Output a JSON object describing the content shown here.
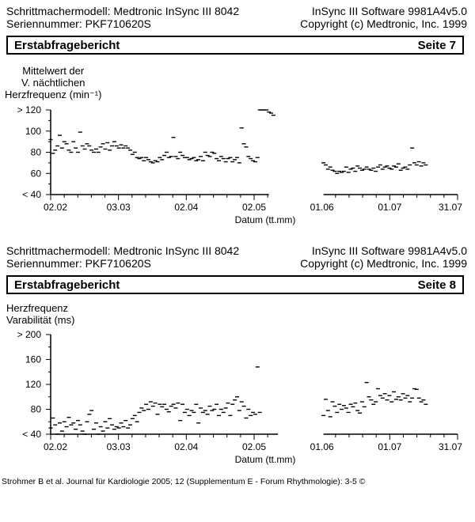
{
  "header1": {
    "model": "Schrittmachermodell: Medtronic InSync III 8042",
    "serial": "Seriennummer: PKF710620S",
    "software": "InSync III Software 9981A4v5.0",
    "copyright": "Copyright (c) Medtronic, Inc. 1999"
  },
  "bar1": {
    "title": "Erstabfragebericht",
    "page": "Seite 7"
  },
  "header2": {
    "model": "Schrittmachermodell: Medtronic InSync III 8042",
    "serial": "Seriennummer: PKF710620S",
    "software": "InSync III Software 9981A4v5.0",
    "copyright": "Copyright (c) Medtronic, Inc. 1999"
  },
  "bar2": {
    "title": "Erstabfragebericht",
    "page": "Seite 8"
  },
  "footer": "Strohmer B et al. Journal für Kardiologie 2005; 12 (Supplementum E - Forum Rhythmologie): 3-5 ©",
  "chart_data": [
    {
      "type": "scatter",
      "title": "",
      "ylabel_lines": [
        "Mittelwert der",
        "V. nächtlichen",
        "Herzfrequenz (min⁻¹)"
      ],
      "xlabel": "Datum (tt.mm)",
      "x_ticks": [
        "02.02",
        "03.03",
        "02.04",
        "02.05",
        "01.06",
        "01.07",
        "31.07"
      ],
      "y_ticks": [
        {
          "value": 40,
          "label": "< 40"
        },
        {
          "value": 60,
          "label": "60"
        },
        {
          "value": 80,
          "label": "80"
        },
        {
          "value": 100,
          "label": "100"
        },
        {
          "value": 120,
          "label": "> 120"
        }
      ],
      "ylim": [
        40,
        120
      ],
      "x_unit": "day index (0 = 02.02, 179 = 31.07)",
      "gap": [
        96,
        120
      ],
      "points": [
        [
          0,
          92
        ],
        [
          1,
          79
        ],
        [
          2,
          82
        ],
        [
          3,
          86
        ],
        [
          4,
          96
        ],
        [
          5,
          84
        ],
        [
          6,
          90
        ],
        [
          7,
          88
        ],
        [
          8,
          82
        ],
        [
          9,
          80
        ],
        [
          10,
          90
        ],
        [
          11,
          84
        ],
        [
          12,
          80
        ],
        [
          13,
          99
        ],
        [
          14,
          86
        ],
        [
          15,
          83
        ],
        [
          16,
          88
        ],
        [
          17,
          86
        ],
        [
          18,
          82
        ],
        [
          19,
          80
        ],
        [
          20,
          83
        ],
        [
          21,
          80
        ],
        [
          22,
          85
        ],
        [
          23,
          88
        ],
        [
          24,
          83
        ],
        [
          25,
          89
        ],
        [
          26,
          82
        ],
        [
          27,
          86
        ],
        [
          28,
          90
        ],
        [
          29,
          86
        ],
        [
          30,
          84
        ],
        [
          31,
          87
        ],
        [
          32,
          84
        ],
        [
          33,
          86
        ],
        [
          34,
          84
        ],
        [
          35,
          82
        ],
        [
          36,
          78
        ],
        [
          37,
          80
        ],
        [
          38,
          75
        ],
        [
          39,
          74
        ],
        [
          40,
          75
        ],
        [
          41,
          72
        ],
        [
          42,
          75
        ],
        [
          43,
          73
        ],
        [
          44,
          71
        ],
        [
          45,
          70
        ],
        [
          46,
          72
        ],
        [
          47,
          71
        ],
        [
          48,
          75
        ],
        [
          49,
          73
        ],
        [
          50,
          77
        ],
        [
          51,
          80
        ],
        [
          52,
          75
        ],
        [
          53,
          76
        ],
        [
          54,
          94
        ],
        [
          55,
          76
        ],
        [
          56,
          74
        ],
        [
          57,
          80
        ],
        [
          58,
          77
        ],
        [
          59,
          75
        ],
        [
          60,
          75
        ],
        [
          61,
          73
        ],
        [
          62,
          74
        ],
        [
          63,
          75
        ],
        [
          64,
          72
        ],
        [
          65,
          73
        ],
        [
          66,
          76
        ],
        [
          67,
          72
        ],
        [
          68,
          80
        ],
        [
          69,
          77
        ],
        [
          70,
          76
        ],
        [
          71,
          80
        ],
        [
          72,
          79
        ],
        [
          73,
          74
        ],
        [
          74,
          72
        ],
        [
          75,
          76
        ],
        [
          76,
          74
        ],
        [
          77,
          71
        ],
        [
          78,
          74
        ],
        [
          79,
          75
        ],
        [
          80,
          71
        ],
        [
          81,
          73
        ],
        [
          82,
          75
        ],
        [
          83,
          70
        ],
        [
          84,
          103
        ],
        [
          85,
          88
        ],
        [
          86,
          85
        ],
        [
          87,
          76
        ],
        [
          88,
          74
        ],
        [
          89,
          72
        ],
        [
          90,
          71
        ],
        [
          91,
          75
        ],
        [
          92,
          121
        ],
        [
          93,
          121
        ],
        [
          94,
          121
        ],
        [
          95,
          120
        ],
        [
          96,
          118
        ],
        [
          97,
          117
        ],
        [
          98,
          115
        ],
        [
          120,
          70
        ],
        [
          121,
          68
        ],
        [
          122,
          64
        ],
        [
          123,
          66
        ],
        [
          124,
          63
        ],
        [
          125,
          62
        ],
        [
          126,
          60
        ],
        [
          127,
          62
        ],
        [
          128,
          61
        ],
        [
          129,
          62
        ],
        [
          130,
          66
        ],
        [
          131,
          61
        ],
        [
          132,
          64
        ],
        [
          133,
          65
        ],
        [
          134,
          62
        ],
        [
          135,
          67
        ],
        [
          136,
          65
        ],
        [
          137,
          63
        ],
        [
          138,
          64
        ],
        [
          139,
          66
        ],
        [
          140,
          64
        ],
        [
          141,
          63
        ],
        [
          142,
          65
        ],
        [
          143,
          62
        ],
        [
          144,
          66
        ],
        [
          145,
          68
        ],
        [
          146,
          64
        ],
        [
          147,
          66
        ],
        [
          148,
          67
        ],
        [
          149,
          65
        ],
        [
          150,
          64
        ],
        [
          151,
          67
        ],
        [
          152,
          66
        ],
        [
          153,
          69
        ],
        [
          154,
          63
        ],
        [
          155,
          65
        ],
        [
          156,
          66
        ],
        [
          157,
          64
        ],
        [
          158,
          68
        ],
        [
          159,
          84
        ],
        [
          160,
          70
        ],
        [
          161,
          68
        ],
        [
          162,
          71
        ],
        [
          163,
          67
        ],
        [
          164,
          70
        ],
        [
          165,
          68
        ]
      ]
    },
    {
      "type": "scatter",
      "title": "",
      "ylabel_lines": [
        "Herzfrequenz",
        "Varabilität (ms)"
      ],
      "xlabel": "Datum (tt.mm)",
      "x_ticks": [
        "02.02",
        "03.03",
        "02.04",
        "02.05",
        "01.06",
        "01.07",
        "31.07"
      ],
      "y_ticks": [
        {
          "value": 40,
          "label": "< 40"
        },
        {
          "value": 80,
          "label": "80"
        },
        {
          "value": 120,
          "label": "120"
        },
        {
          "value": 160,
          "label": "160"
        },
        {
          "value": 200,
          "label": "> 200"
        }
      ],
      "ylim": [
        40,
        200
      ],
      "x_unit": "day index (0 = 02.02, 179 = 31.07)",
      "gap": [
        100,
        120
      ],
      "points": [
        [
          0,
          50
        ],
        [
          1,
          66
        ],
        [
          2,
          55
        ],
        [
          3,
          40
        ],
        [
          4,
          58
        ],
        [
          5,
          45
        ],
        [
          6,
          60
        ],
        [
          7,
          52
        ],
        [
          8,
          67
        ],
        [
          9,
          55
        ],
        [
          10,
          58
        ],
        [
          11,
          48
        ],
        [
          12,
          62
        ],
        [
          13,
          55
        ],
        [
          14,
          45
        ],
        [
          15,
          40
        ],
        [
          16,
          60
        ],
        [
          17,
          72
        ],
        [
          18,
          78
        ],
        [
          19,
          48
        ],
        [
          20,
          58
        ],
        [
          21,
          40
        ],
        [
          22,
          52
        ],
        [
          23,
          45
        ],
        [
          24,
          60
        ],
        [
          25,
          50
        ],
        [
          26,
          65
        ],
        [
          27,
          55
        ],
        [
          28,
          48
        ],
        [
          29,
          52
        ],
        [
          30,
          50
        ],
        [
          31,
          58
        ],
        [
          32,
          52
        ],
        [
          33,
          62
        ],
        [
          34,
          50
        ],
        [
          35,
          55
        ],
        [
          36,
          65
        ],
        [
          37,
          70
        ],
        [
          38,
          60
        ],
        [
          39,
          75
        ],
        [
          40,
          82
        ],
        [
          41,
          78
        ],
        [
          42,
          88
        ],
        [
          43,
          80
        ],
        [
          44,
          92
        ],
        [
          45,
          85
        ],
        [
          46,
          90
        ],
        [
          47,
          72
        ],
        [
          48,
          88
        ],
        [
          49,
          84
        ],
        [
          50,
          88
        ],
        [
          51,
          80
        ],
        [
          52,
          76
        ],
        [
          53,
          85
        ],
        [
          54,
          88
        ],
        [
          55,
          82
        ],
        [
          56,
          90
        ],
        [
          57,
          62
        ],
        [
          58,
          88
        ],
        [
          59,
          75
        ],
        [
          60,
          80
        ],
        [
          61,
          70
        ],
        [
          62,
          78
        ],
        [
          63,
          75
        ],
        [
          64,
          88
        ],
        [
          65,
          58
        ],
        [
          66,
          82
        ],
        [
          67,
          75
        ],
        [
          68,
          78
        ],
        [
          69,
          72
        ],
        [
          70,
          85
        ],
        [
          71,
          78
        ],
        [
          72,
          80
        ],
        [
          73,
          88
        ],
        [
          74,
          70
        ],
        [
          75,
          80
        ],
        [
          76,
          75
        ],
        [
          77,
          82
        ],
        [
          78,
          90
        ],
        [
          79,
          70
        ],
        [
          80,
          88
        ],
        [
          81,
          95
        ],
        [
          82,
          100
        ],
        [
          83,
          78
        ],
        [
          84,
          92
        ],
        [
          85,
          85
        ],
        [
          86,
          66
        ],
        [
          87,
          80
        ],
        [
          88,
          70
        ],
        [
          89,
          75
        ],
        [
          90,
          72
        ],
        [
          91,
          148
        ],
        [
          92,
          75
        ],
        [
          120,
          70
        ],
        [
          121,
          96
        ],
        [
          122,
          78
        ],
        [
          123,
          68
        ],
        [
          124,
          92
        ],
        [
          125,
          85
        ],
        [
          126,
          75
        ],
        [
          127,
          88
        ],
        [
          128,
          80
        ],
        [
          129,
          86
        ],
        [
          130,
          82
        ],
        [
          131,
          75
        ],
        [
          132,
          88
        ],
        [
          133,
          84
        ],
        [
          134,
          90
        ],
        [
          135,
          78
        ],
        [
          136,
          74
        ],
        [
          137,
          92
        ],
        [
          138,
          84
        ],
        [
          139,
          123
        ],
        [
          140,
          100
        ],
        [
          141,
          95
        ],
        [
          142,
          88
        ],
        [
          143,
          92
        ],
        [
          144,
          113
        ],
        [
          145,
          102
        ],
        [
          146,
          98
        ],
        [
          147,
          105
        ],
        [
          148,
          95
        ],
        [
          149,
          102
        ],
        [
          150,
          92
        ],
        [
          151,
          108
        ],
        [
          152,
          96
        ],
        [
          153,
          100
        ],
        [
          154,
          95
        ],
        [
          155,
          105
        ],
        [
          156,
          98
        ],
        [
          157,
          102
        ],
        [
          158,
          92
        ],
        [
          159,
          98
        ],
        [
          160,
          113
        ],
        [
          161,
          112
        ],
        [
          162,
          98
        ],
        [
          163,
          92
        ],
        [
          164,
          95
        ],
        [
          165,
          88
        ]
      ]
    }
  ]
}
